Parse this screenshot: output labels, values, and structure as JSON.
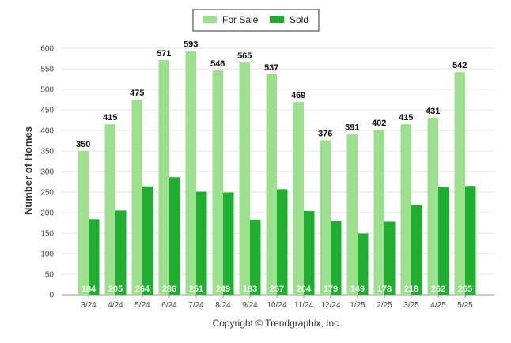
{
  "chart_data": {
    "type": "bar",
    "categories": [
      "3/24",
      "4/24",
      "5/24",
      "6/24",
      "7/24",
      "8/24",
      "9/24",
      "10/24",
      "11/24",
      "12/24",
      "1/25",
      "2/25",
      "3/25",
      "4/25",
      "5/25"
    ],
    "series": [
      {
        "name": "For Sale",
        "color": "#9be08a",
        "values": [
          350,
          415,
          475,
          571,
          593,
          546,
          565,
          537,
          469,
          376,
          391,
          402,
          415,
          431,
          542
        ]
      },
      {
        "name": "Sold",
        "color": "#1fae2f",
        "values": [
          184,
          205,
          264,
          286,
          251,
          249,
          183,
          257,
          204,
          179,
          149,
          178,
          218,
          262,
          265
        ]
      }
    ],
    "ylabel": "Number of Homes",
    "xlabel": "",
    "ylim": [
      0,
      600
    ],
    "yticks": [
      0,
      50,
      100,
      150,
      200,
      250,
      300,
      350,
      400,
      450,
      500,
      550,
      600
    ],
    "grid": true,
    "legend_position": "top-center",
    "footer": "Copyright © Trendgraphix, Inc."
  }
}
